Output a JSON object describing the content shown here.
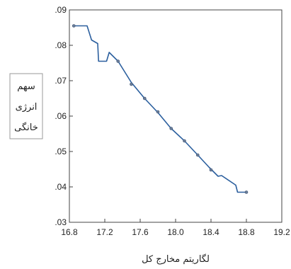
{
  "chart_data": {
    "type": "line",
    "title": "",
    "xlabel": "لگاریتم مخارج کل",
    "ylabel_lines": [
      "سهم",
      "انرژی",
      "خانگی"
    ],
    "xlim": [
      16.8,
      19.2
    ],
    "ylim": [
      0.03,
      0.09
    ],
    "xticks": [
      16.8,
      17.2,
      17.6,
      18.0,
      18.4,
      18.8,
      19.2
    ],
    "xtick_labels": [
      "16.8",
      "17.2",
      "17.6",
      "18.0",
      "18.4",
      "18.8",
      "19.2"
    ],
    "yticks": [
      0.03,
      0.04,
      0.05,
      0.06,
      0.07,
      0.08,
      0.09
    ],
    "ytick_labels": [
      ".03",
      ".04",
      ".05",
      ".06",
      ".07",
      ".08",
      ".09"
    ],
    "grid": false,
    "series": [
      {
        "color": "#2b5f9e",
        "x": [
          16.85,
          17.0,
          17.05,
          17.12,
          17.13,
          17.22,
          17.25,
          17.35,
          17.5,
          17.65,
          17.8,
          17.95,
          18.1,
          18.25,
          18.38,
          18.48,
          18.52,
          18.68,
          18.7,
          18.8
        ],
        "y": [
          0.0855,
          0.0855,
          0.0815,
          0.0805,
          0.0755,
          0.0755,
          0.078,
          0.0755,
          0.0695,
          0.065,
          0.061,
          0.0565,
          0.053,
          0.049,
          0.0455,
          0.043,
          0.0432,
          0.0405,
          0.0385,
          0.0385
        ]
      }
    ],
    "markers": {
      "x": [
        16.85,
        17.35,
        17.5,
        17.65,
        17.8,
        17.95,
        18.1,
        18.25,
        18.4,
        18.8
      ],
      "y": [
        0.0855,
        0.0755,
        0.069,
        0.065,
        0.0612,
        0.0565,
        0.053,
        0.049,
        0.0448,
        0.0385
      ]
    }
  }
}
